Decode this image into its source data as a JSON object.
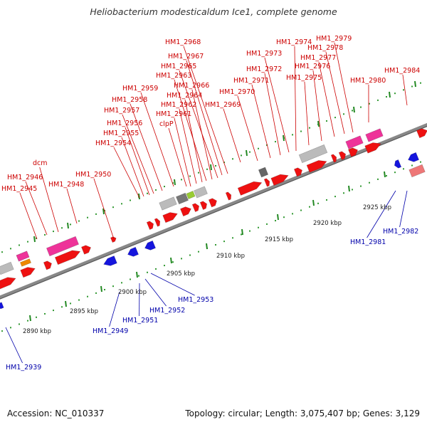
{
  "header": {
    "title": "Heliobacterium modesticaldum Ice1, complete genome"
  },
  "footer": {
    "accession": "Accession: NC_010337",
    "summary": "Topology: circular; Length: 3,075,407 bp; Genes: 3,129"
  },
  "colors": {
    "forward_label": "#cc0000",
    "reverse_label": "#0000aa",
    "forward_gene": "#ee1111",
    "reverse_gene": "#1515dd",
    "rna_gene": "#ee3399",
    "pseudo_gene": "#bbbbbb",
    "backbone": "#888888",
    "tick_major": "#228822"
  },
  "scale": {
    "ticks": [
      {
        "label": "2890 kbp"
      },
      {
        "label": "2895 kbp"
      },
      {
        "label": "2900 kbp"
      },
      {
        "label": "2905 kbp"
      },
      {
        "label": "2910 kbp"
      },
      {
        "label": "2915 kbp"
      },
      {
        "label": "2920 kbp"
      },
      {
        "label": "2925 kbp"
      }
    ]
  },
  "gene_labels": {
    "forward": [
      "HM1_2945",
      "HM1_2946",
      "dcm",
      "HM1_2948",
      "HM1_2950",
      "HM1_2954",
      "HM1_2955",
      "HM1_2956",
      "HM1_2957",
      "HM1_2958",
      "HM1_2959",
      "clpP",
      "HM1_2961",
      "HM1_2962",
      "HM1_2964",
      "HM1_2963",
      "HM1_2966",
      "HM1_2965",
      "HM1_2967",
      "HM1_2968",
      "HM1_2969",
      "HM1_2970",
      "HM1_2971",
      "HM1_2972",
      "HM1_2973",
      "HM1_2974",
      "HM1_2975",
      "HM1_2976",
      "HM1_2977",
      "HM1_2978",
      "HM1_2979",
      "HM1_2980",
      "HM1_2984"
    ],
    "reverse": [
      "HM1_2939",
      "HM1_2949",
      "HM1_2951",
      "HM1_2952",
      "HM1_2953",
      "HM1_2981",
      "HM1_2982"
    ]
  }
}
